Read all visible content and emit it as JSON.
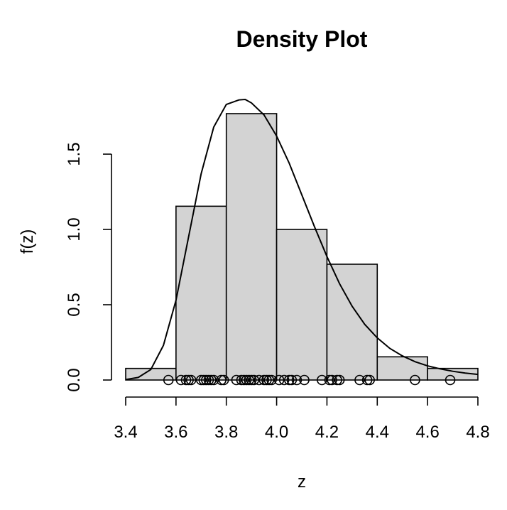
{
  "chart_data": {
    "type": "histogram",
    "title": "Density Plot",
    "xlabel": "z",
    "ylabel": "f(z)",
    "xlim": [
      3.4,
      4.8
    ],
    "ylim": [
      0,
      1.85
    ],
    "x_ticks": [
      3.4,
      3.6,
      3.8,
      4.0,
      4.2,
      4.4,
      4.6,
      4.8
    ],
    "x_tick_labels": [
      "3.4",
      "3.6",
      "3.8",
      "4.0",
      "4.2",
      "4.4",
      "4.6",
      "4.8"
    ],
    "y_ticks": [
      0.0,
      0.5,
      1.0,
      1.5
    ],
    "y_tick_labels": [
      "0.0",
      "0.5",
      "1.0",
      "1.5"
    ],
    "bins": [
      {
        "start": 3.4,
        "end": 3.6,
        "density": 0.077
      },
      {
        "start": 3.6,
        "end": 3.8,
        "density": 1.154
      },
      {
        "start": 3.8,
        "end": 4.0,
        "density": 1.769
      },
      {
        "start": 4.0,
        "end": 4.2,
        "density": 1.0
      },
      {
        "start": 4.2,
        "end": 4.4,
        "density": 0.769
      },
      {
        "start": 4.4,
        "end": 4.6,
        "density": 0.154
      },
      {
        "start": 4.6,
        "end": 4.8,
        "density": 0.077
      }
    ],
    "density_curve": {
      "x": [
        3.4,
        3.45,
        3.5,
        3.55,
        3.6,
        3.65,
        3.7,
        3.75,
        3.8,
        3.85,
        3.875,
        3.9,
        3.95,
        4.0,
        4.05,
        4.1,
        4.15,
        4.2,
        4.25,
        4.3,
        4.35,
        4.4,
        4.45,
        4.5,
        4.55,
        4.6,
        4.65,
        4.7,
        4.75,
        4.8
      ],
      "y": [
        0.003,
        0.017,
        0.07,
        0.23,
        0.53,
        0.95,
        1.37,
        1.68,
        1.83,
        1.86,
        1.863,
        1.84,
        1.76,
        1.62,
        1.44,
        1.23,
        1.02,
        0.82,
        0.64,
        0.49,
        0.37,
        0.28,
        0.21,
        0.16,
        0.122,
        0.094,
        0.074,
        0.058,
        0.046,
        0.037
      ]
    },
    "observations": [
      3.57,
      3.62,
      3.64,
      3.65,
      3.66,
      3.7,
      3.71,
      3.72,
      3.73,
      3.74,
      3.75,
      3.78,
      3.79,
      3.84,
      3.86,
      3.87,
      3.88,
      3.89,
      3.9,
      3.91,
      3.93,
      3.95,
      3.96,
      3.97,
      3.98,
      4.01,
      4.03,
      4.05,
      4.06,
      4.08,
      4.11,
      4.18,
      4.21,
      4.22,
      4.24,
      4.25,
      4.33,
      4.36,
      4.37,
      4.55,
      4.69
    ],
    "grid": false,
    "legend": "none"
  }
}
